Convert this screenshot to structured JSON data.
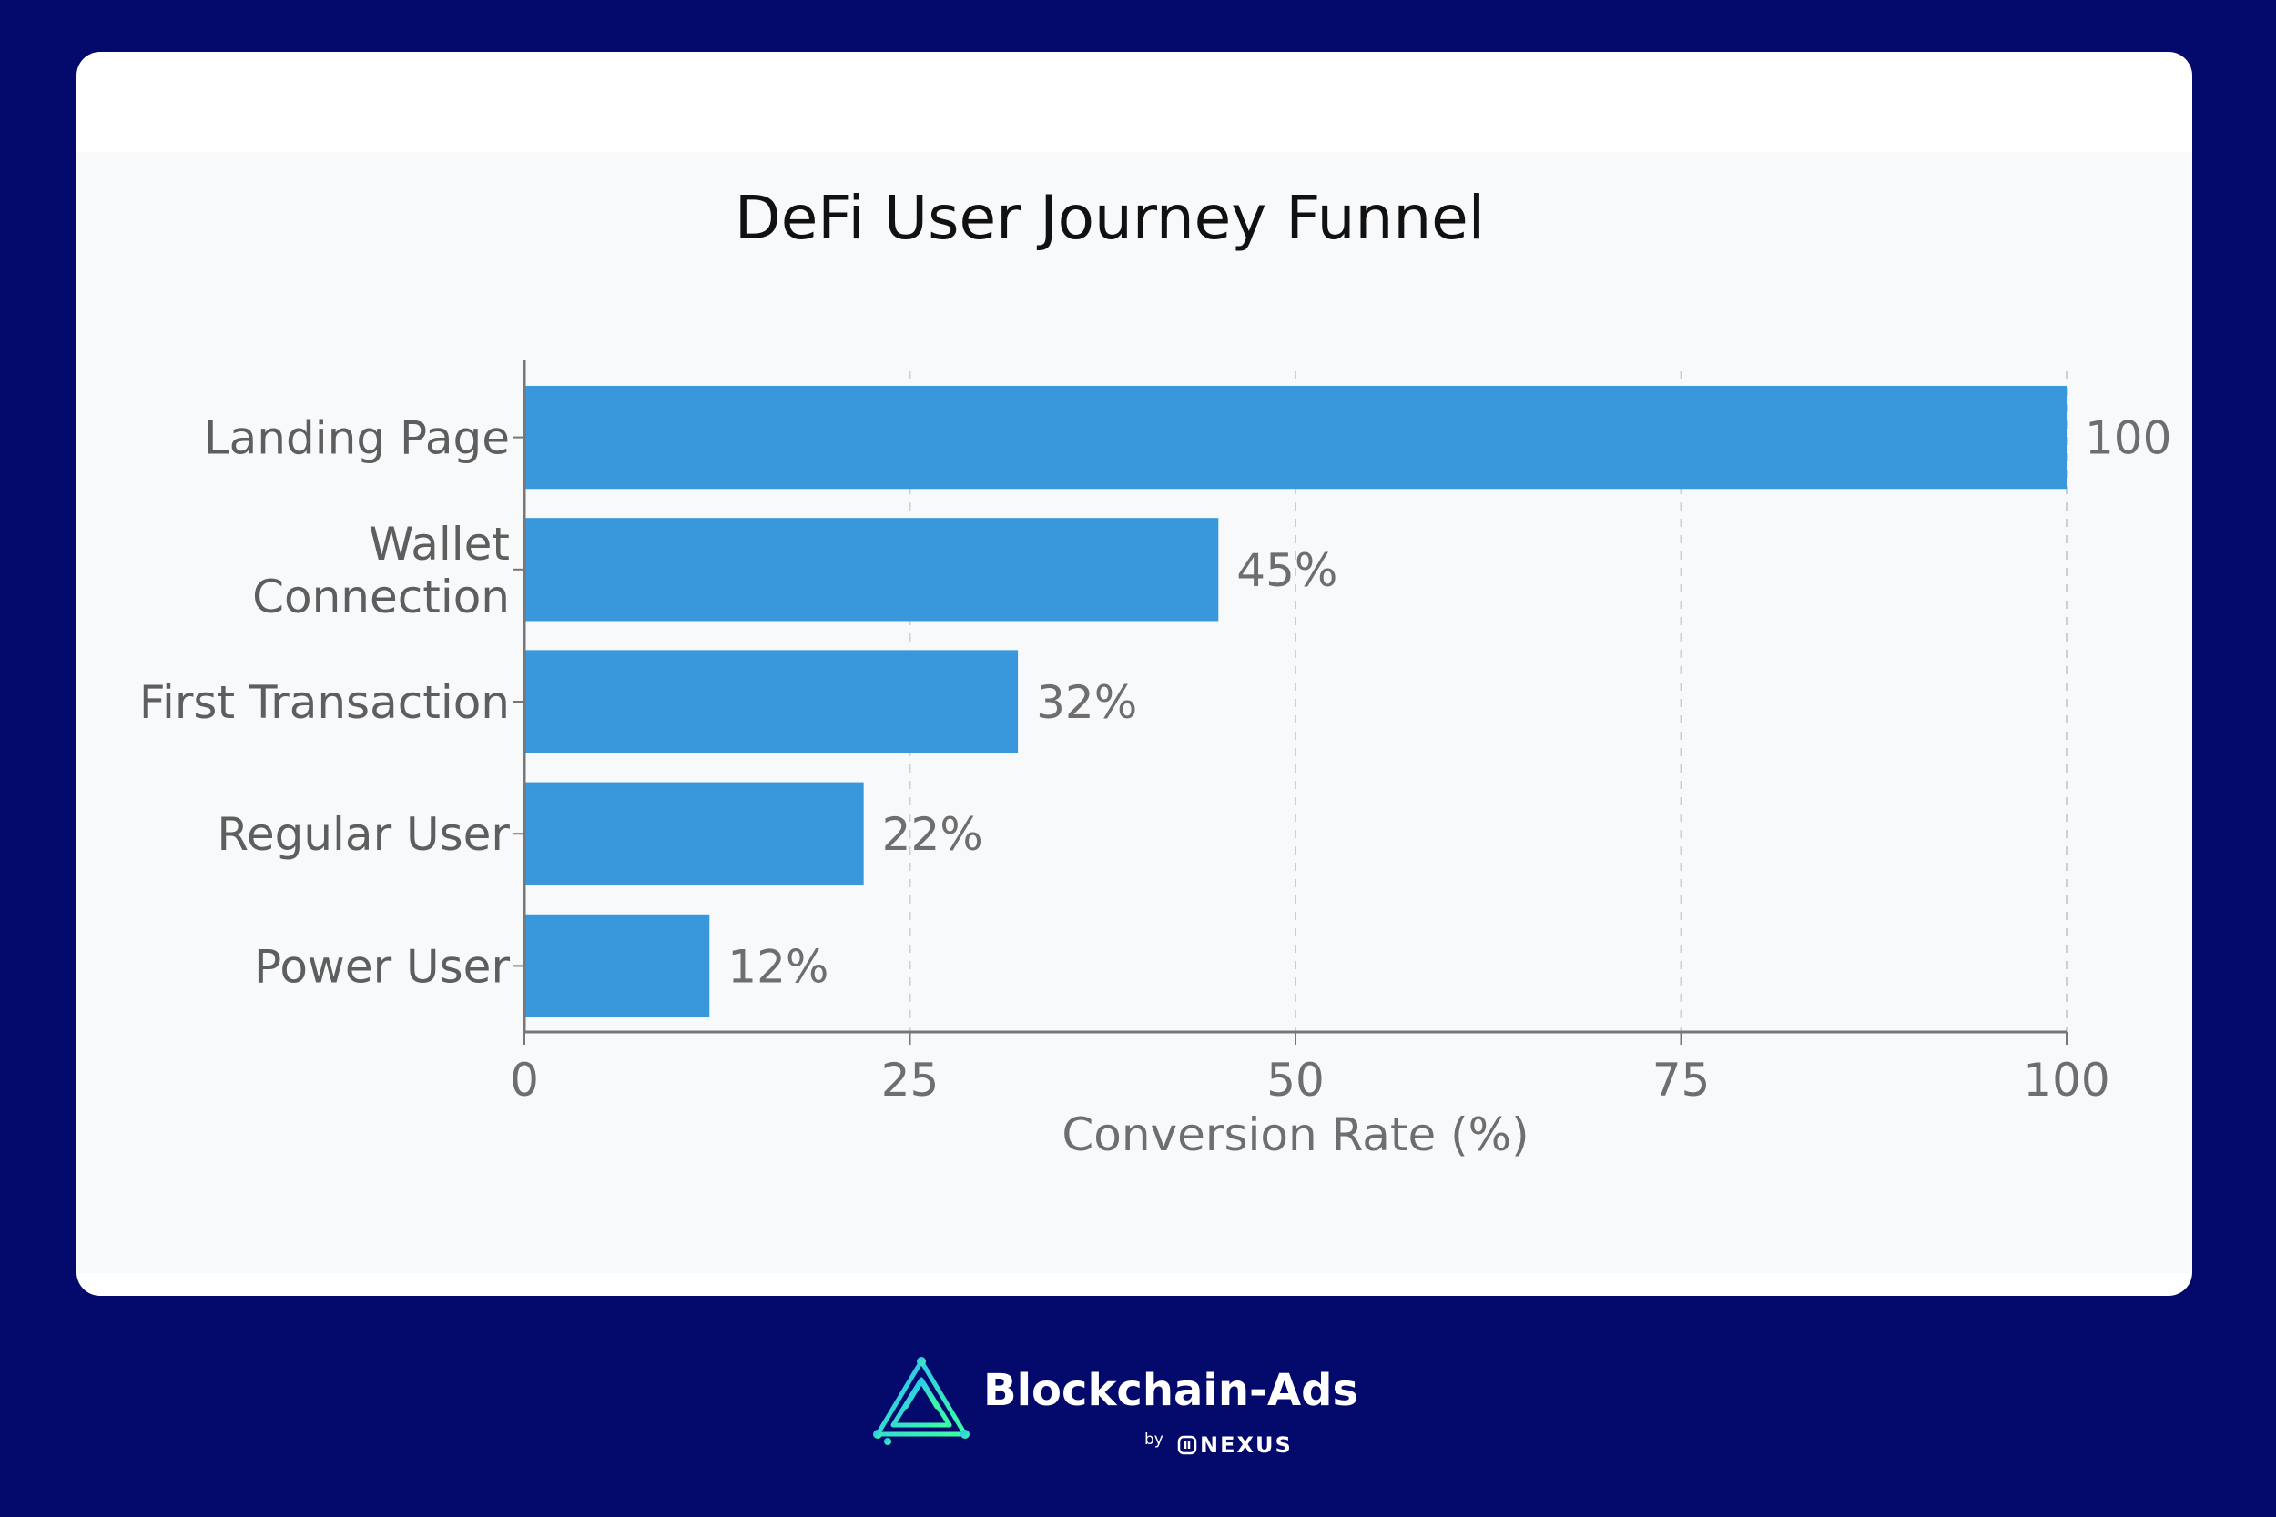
{
  "chart_data": {
    "type": "bar",
    "orientation": "horizontal",
    "title": "DeFi User Journey Funnel",
    "xlabel": "Conversion Rate (%)",
    "ylabel": "",
    "xlim": [
      0,
      100
    ],
    "x_ticks": [
      "0",
      "25",
      "50",
      "75",
      "100"
    ],
    "categories": [
      "Landing Page",
      "Wallet Connection",
      "First Transaction",
      "Regular User",
      "Power User"
    ],
    "category_lines": [
      [
        "Landing Page"
      ],
      [
        "Wallet",
        "Connection"
      ],
      [
        "First Transaction"
      ],
      [
        "Regular User"
      ],
      [
        "Power User"
      ]
    ],
    "values": [
      100,
      45,
      32,
      22,
      12
    ],
    "data_labels": [
      "100",
      "45%",
      "32%",
      "22%",
      "12%"
    ],
    "bar_color": "#3898db",
    "grid": "vertical dashed"
  },
  "branding": {
    "name": "Blockchain-Ads",
    "by": "by",
    "partner": "NEXUS"
  },
  "colors": {
    "background": "#040a6b",
    "card": "#ffffff",
    "plot_bg": "#f8f9fb",
    "logo_gradient_start": "#2bb8ff",
    "logo_gradient_end": "#3dffa0"
  }
}
